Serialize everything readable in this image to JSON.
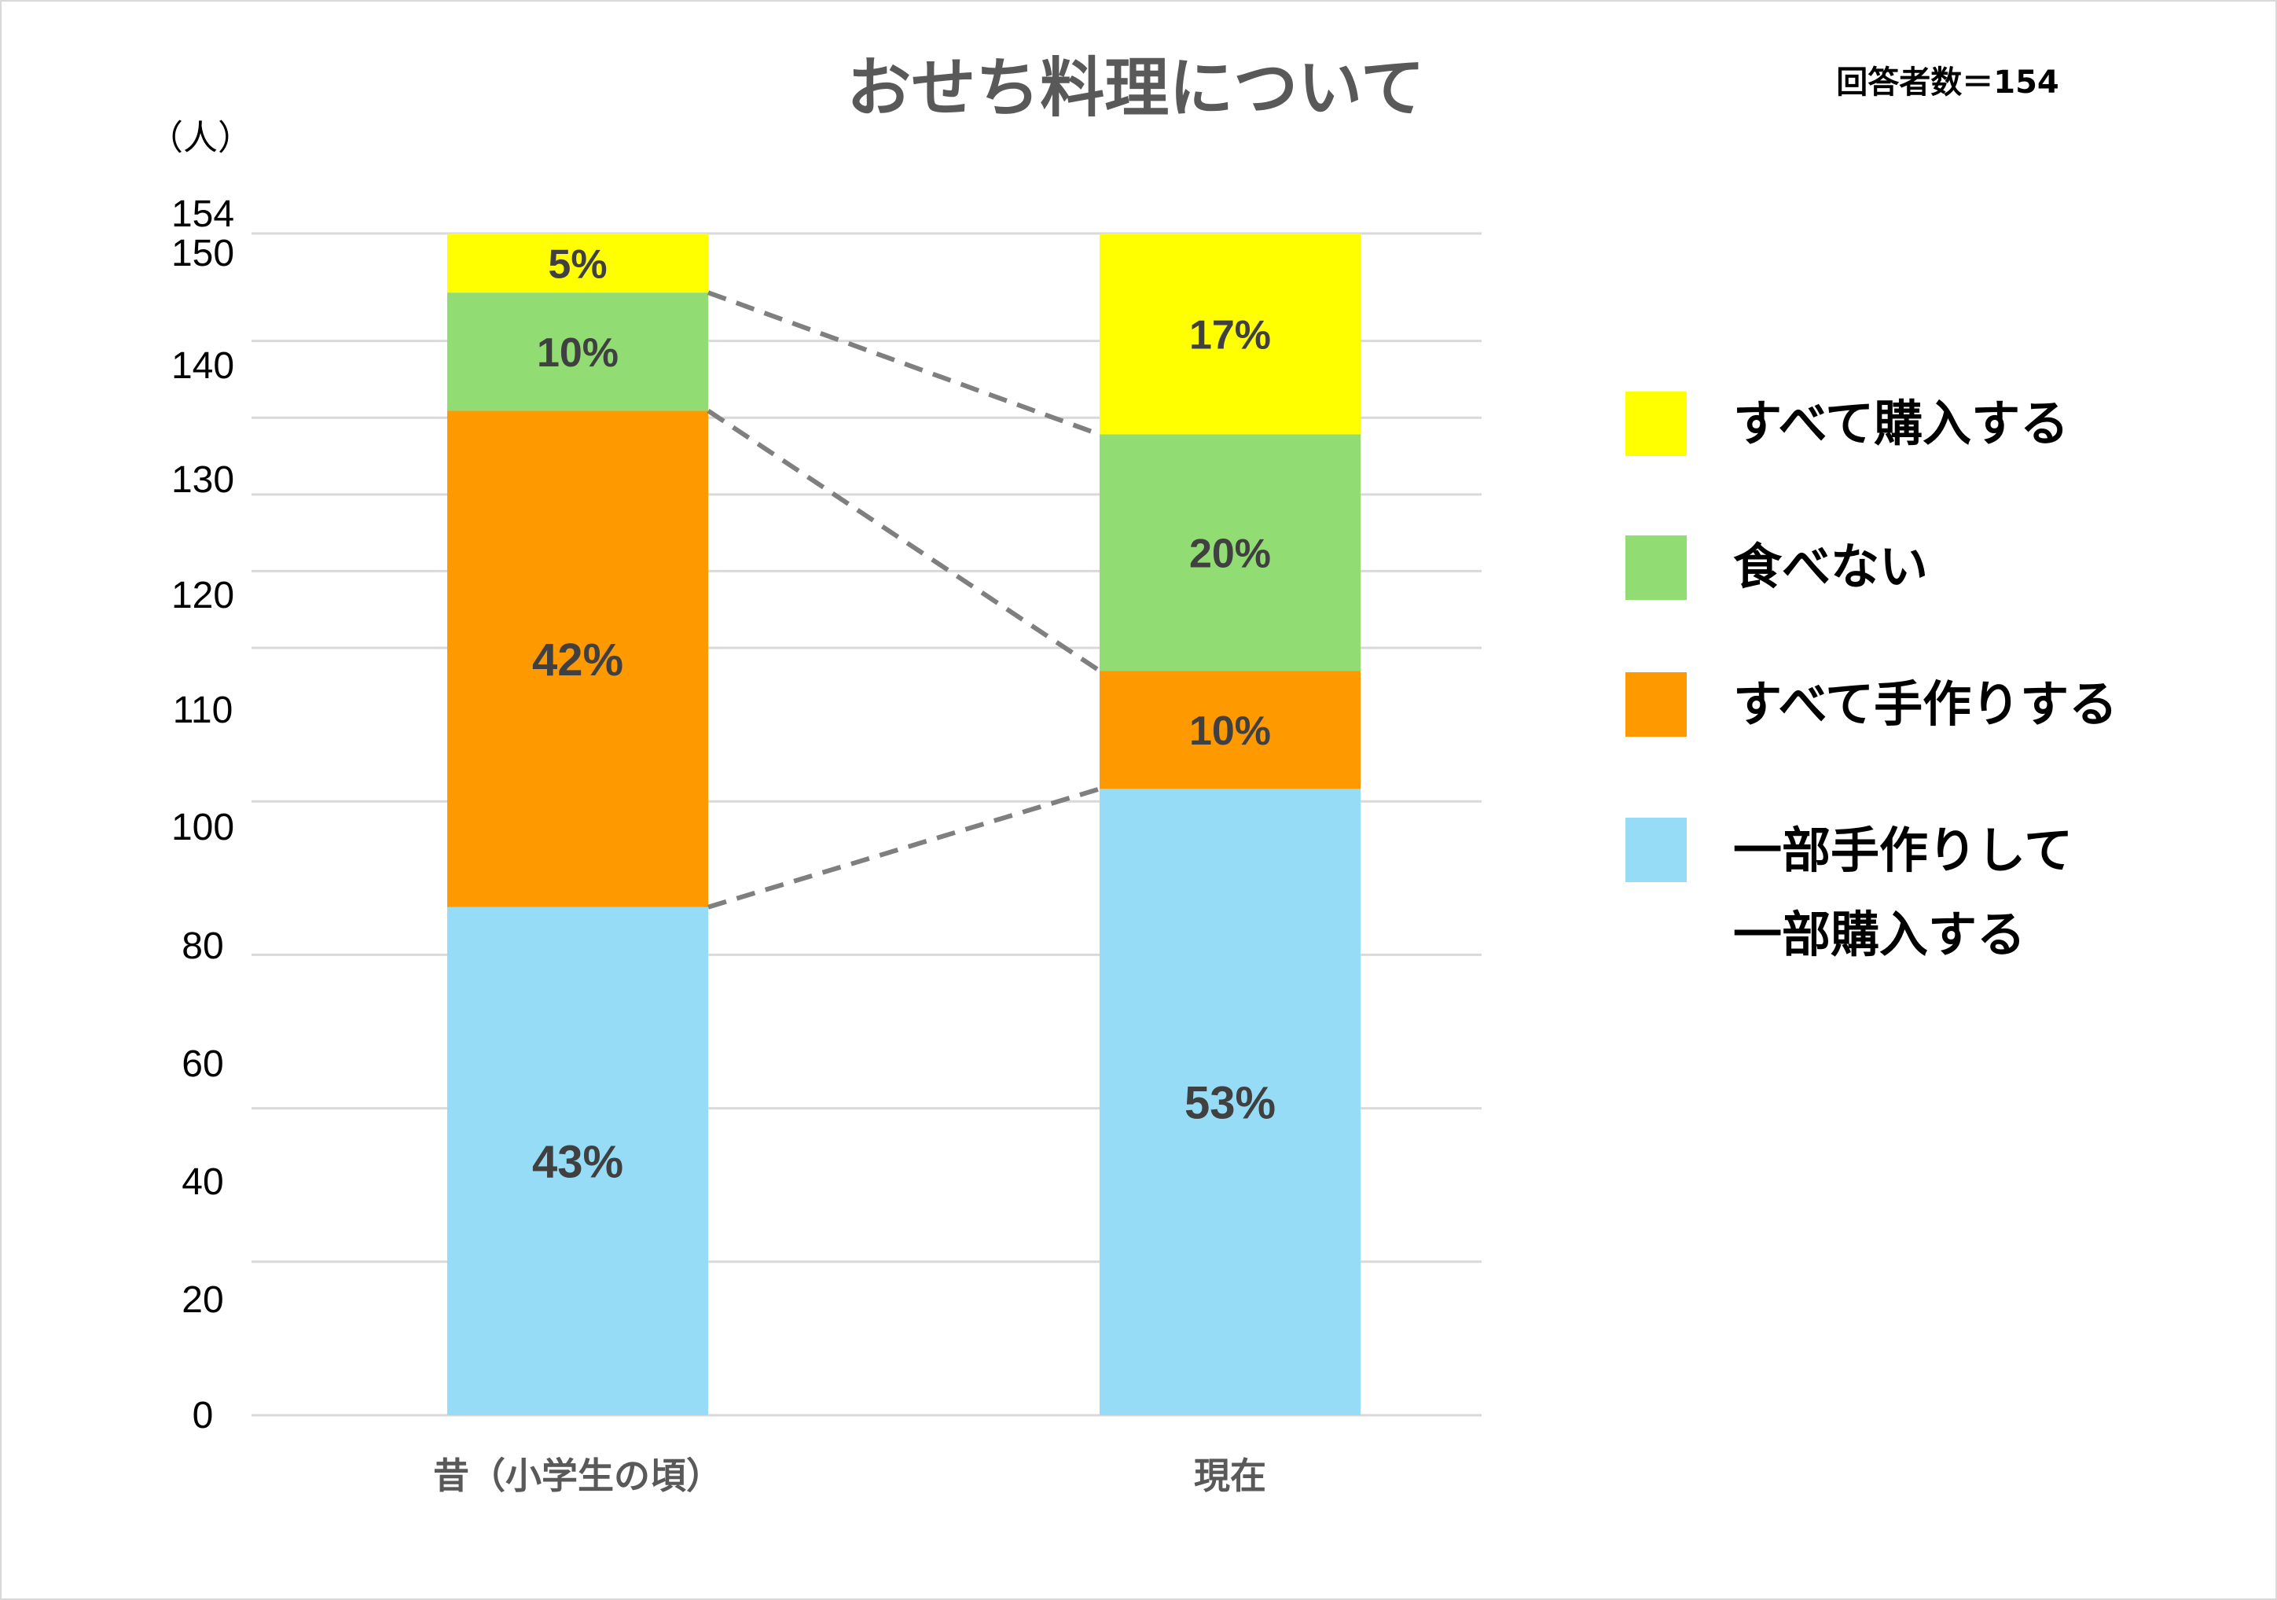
{
  "chart_data": {
    "type": "stacked-bar",
    "title": "おせち料理について",
    "respondents_note": "回答者数＝154",
    "ylabel": "（人）",
    "ylim": [
      0,
      154
    ],
    "y_ticks": [
      0,
      20,
      40,
      60,
      80,
      100,
      110,
      120,
      130,
      140,
      150,
      154
    ],
    "categories": [
      "昔（小学生の頃）",
      "現在"
    ],
    "series": [
      {
        "name": "一部手作りして一部購入する",
        "legend_lines": [
          "一部手作りして",
          "一部購入する"
        ],
        "color": "#97dcf7",
        "percent": [
          43,
          53
        ],
        "labels": [
          "43%",
          "53%"
        ]
      },
      {
        "name": "すべて手作りする",
        "legend_lines": [
          "すべて手作りする"
        ],
        "color": "#ff9900",
        "percent": [
          42,
          10
        ],
        "labels": [
          "42%",
          "10%"
        ]
      },
      {
        "name": "食べない",
        "legend_lines": [
          "食べない"
        ],
        "color": "#91dc73",
        "percent": [
          10,
          20
        ],
        "labels": [
          "10%",
          "20%"
        ]
      },
      {
        "name": "すべて購入する",
        "legend_lines": [
          "すべて購入する"
        ],
        "color": "#ffff00",
        "percent": [
          5,
          17
        ],
        "labels": [
          "5%",
          "17%"
        ]
      }
    ],
    "connectors": "dashed lines joining series boundaries between bars",
    "grid": true,
    "legend_position": "right"
  }
}
